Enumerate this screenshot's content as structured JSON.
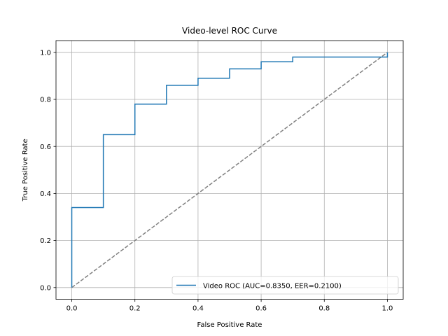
{
  "chart_data": {
    "type": "line",
    "title": "Video-level ROC Curve",
    "xlabel": "False Positive Rate",
    "ylabel": "True Positive Rate",
    "xlim": [
      -0.05,
      1.05
    ],
    "ylim": [
      -0.05,
      1.05
    ],
    "xticks": [
      0.0,
      0.2,
      0.4,
      0.6,
      0.8,
      1.0
    ],
    "yticks": [
      0.0,
      0.2,
      0.4,
      0.6,
      0.8,
      1.0
    ],
    "xtick_labels": [
      "0.0",
      "0.2",
      "0.4",
      "0.6",
      "0.8",
      "1.0"
    ],
    "ytick_labels": [
      "0.0",
      "0.2",
      "0.4",
      "0.6",
      "0.8",
      "1.0"
    ],
    "grid": true,
    "legend_position": "lower-right",
    "series": [
      {
        "name": "Video ROC (AUC=0.8350, EER=0.2100)",
        "style": "step",
        "color": "#1f77b4",
        "x": [
          0.0,
          0.0,
          0.1,
          0.1,
          0.2,
          0.2,
          0.3,
          0.3,
          0.4,
          0.4,
          0.5,
          0.5,
          0.6,
          0.6,
          0.7,
          0.7,
          1.0,
          1.0
        ],
        "y": [
          0.0,
          0.34,
          0.34,
          0.65,
          0.65,
          0.78,
          0.78,
          0.86,
          0.86,
          0.89,
          0.89,
          0.93,
          0.93,
          0.96,
          0.96,
          0.98,
          0.98,
          1.0
        ]
      },
      {
        "style": "dashed",
        "color": "#808080",
        "x": [
          0.0,
          1.0
        ],
        "y": [
          0.0,
          1.0
        ]
      }
    ]
  }
}
